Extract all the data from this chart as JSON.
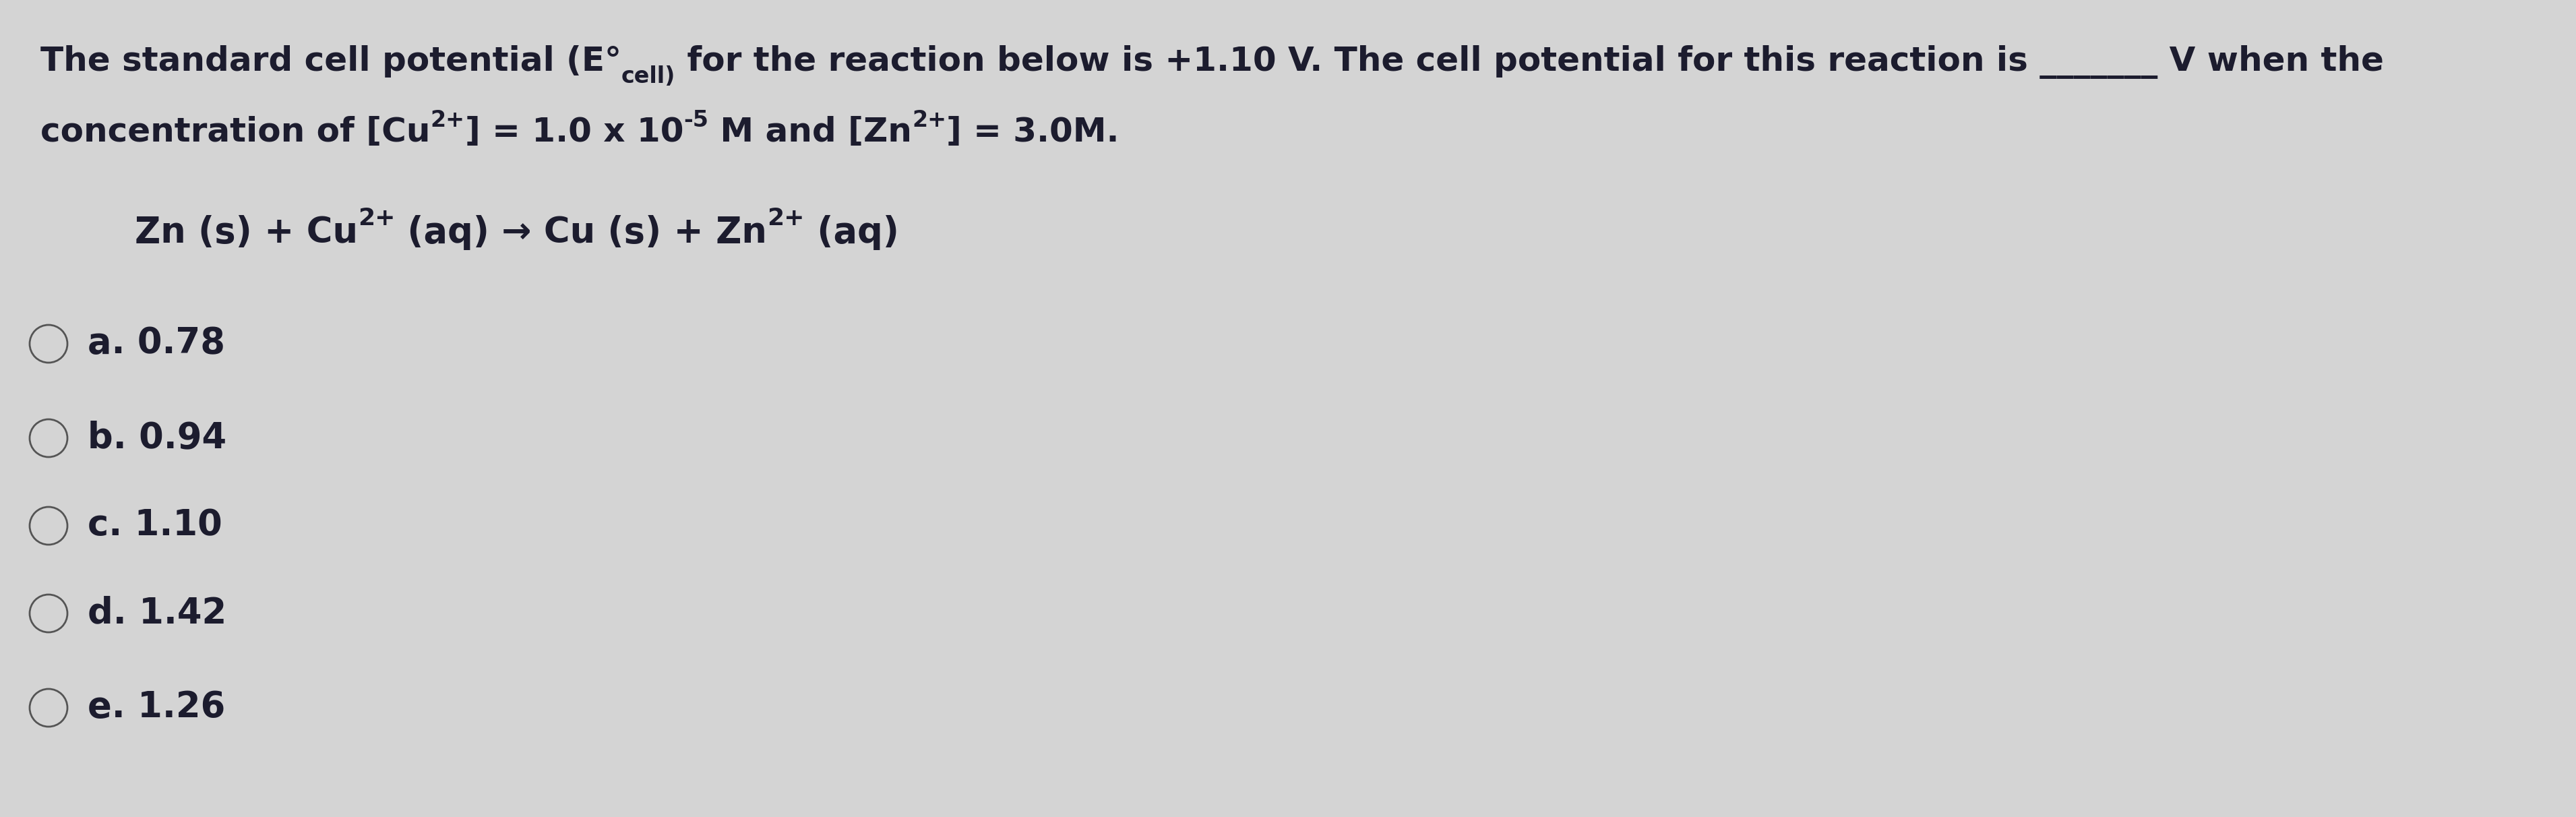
{
  "background_color": "#d4d4d4",
  "text_color": "#1c1c2e",
  "circle_color": "#555555",
  "line1_main": "The standard cell potential (E°",
  "line1_sub": "cell)",
  "line1_rest": " for the reaction below is +1.10 V. The cell potential for this reaction is _______ V when the",
  "line2_pre": "concentration of [Cu",
  "line2_sup1": "2+",
  "line2_mid1": "] = 1.0 x 10",
  "line2_sup2": "-5",
  "line2_mid2": " M and [Zn",
  "line2_sup3": "2+",
  "line2_end": "] = 3.0M.",
  "eq_pre": "Zn (s) + Cu",
  "eq_sup1": "2+",
  "eq_mid": " (aq) → Cu (s) + Zn",
  "eq_sup2": "2+",
  "eq_end": " (aq)",
  "options": [
    "a. 0.78",
    "b. 0.94",
    "c. 1.10",
    "d. 1.42",
    "e. 1.26"
  ],
  "fs_main": 36,
  "fs_sub": 24,
  "fs_eq": 38,
  "fs_opt": 38
}
